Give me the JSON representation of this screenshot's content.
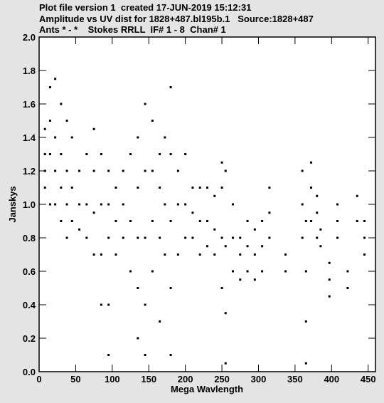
{
  "chart_data": {
    "type": "scatter",
    "title_lines": [
      "Plot file version 1  created 17-JUN-2019 15:12:31",
      "Amplitude vs UV dist for 1828+487.bl195b.1   Source:1828+487",
      "Ants * - *    Stokes RRLL  IF# 1 - 8  Chan# 1"
    ],
    "x_label": "Mega Wavlength",
    "y_label": "Janskys",
    "color": "#000000",
    "xlim": [
      0,
      460
    ],
    "ylim": [
      0,
      2
    ],
    "xticks": [
      0,
      50,
      100,
      150,
      200,
      250,
      300,
      350,
      400,
      450
    ],
    "yticks": [
      {
        "value": 0,
        "label": "0.0"
      },
      0.2,
      0.4,
      0.6,
      0.8,
      {
        "value": 1,
        "label": "1.0"
      },
      1.2,
      1.4,
      1.6,
      1.8,
      {
        "value": 2,
        "label": "2.0"
      }
    ],
    "x": [
      8,
      8,
      8,
      8,
      15,
      15,
      15,
      15,
      22,
      22,
      22,
      22,
      30,
      30,
      30,
      30,
      38,
      38,
      38,
      38,
      45,
      45,
      45,
      55,
      55,
      55,
      65,
      65,
      65,
      75,
      75,
      75,
      75,
      85,
      85,
      85,
      85,
      95,
      95,
      95,
      95,
      95,
      105,
      105,
      105,
      115,
      115,
      115,
      125,
      125,
      125,
      135,
      135,
      135,
      135,
      135,
      145,
      145,
      145,
      145,
      145,
      155,
      155,
      155,
      155,
      165,
      165,
      165,
      165,
      172,
      172,
      172,
      180,
      180,
      180,
      180,
      180,
      190,
      190,
      190,
      200,
      200,
      200,
      210,
      210,
      210,
      220,
      220,
      220,
      230,
      230,
      230,
      240,
      240,
      240,
      250,
      250,
      250,
      250,
      255,
      255,
      255,
      255,
      265,
      265,
      265,
      275,
      275,
      275,
      285,
      285,
      285,
      295,
      295,
      295,
      305,
      305,
      305,
      315,
      315,
      315,
      337,
      337,
      360,
      360,
      360,
      365,
      365,
      365,
      365,
      372,
      372,
      372,
      380,
      380,
      380,
      385,
      385,
      397,
      397,
      397,
      408,
      408,
      408,
      422,
      422,
      435,
      435,
      445,
      445,
      445
    ],
    "values": [
      1.2,
      1.3,
      1.45,
      1.1,
      1.0,
      1.3,
      1.5,
      1.7,
      1.0,
      1.2,
      1.4,
      1.75,
      0.9,
      1.1,
      1.3,
      1.6,
      0.8,
      1.0,
      1.2,
      1.5,
      0.9,
      1.1,
      1.4,
      0.85,
      1.0,
      1.2,
      0.8,
      1.0,
      1.3,
      0.7,
      0.95,
      1.2,
      1.45,
      0.4,
      0.7,
      1.0,
      1.3,
      0.1,
      0.4,
      0.8,
      1.0,
      1.2,
      0.7,
      0.9,
      1.1,
      0.8,
      1.0,
      1.2,
      0.6,
      0.9,
      1.3,
      0.2,
      0.5,
      0.8,
      1.1,
      1.4,
      0.1,
      0.4,
      0.8,
      1.2,
      1.6,
      0.6,
      0.9,
      1.2,
      1.5,
      0.3,
      0.8,
      1.1,
      1.3,
      0.7,
      1.0,
      1.4,
      0.1,
      0.5,
      0.9,
      1.3,
      1.7,
      0.7,
      1.0,
      1.2,
      0.8,
      1.0,
      1.3,
      0.8,
      0.95,
      1.1,
      0.7,
      0.9,
      1.1,
      0.75,
      0.9,
      1.1,
      0.7,
      0.85,
      1.05,
      0.5,
      0.8,
      1.1,
      1.25,
      0.05,
      0.35,
      0.75,
      1.2,
      0.6,
      0.8,
      1.0,
      0.55,
      0.7,
      0.8,
      0.6,
      0.75,
      0.9,
      0.55,
      0.7,
      0.85,
      0.6,
      0.75,
      0.9,
      0.8,
      0.95,
      1.1,
      0.6,
      0.7,
      0.8,
      1.0,
      1.2,
      0.05,
      0.3,
      0.6,
      0.9,
      0.9,
      1.1,
      1.25,
      0.8,
      0.95,
      1.05,
      0.75,
      0.85,
      0.45,
      0.55,
      0.65,
      0.8,
      0.9,
      1.0,
      0.5,
      0.6,
      0.9,
      1.05,
      0.7,
      0.8,
      0.9
    ]
  }
}
